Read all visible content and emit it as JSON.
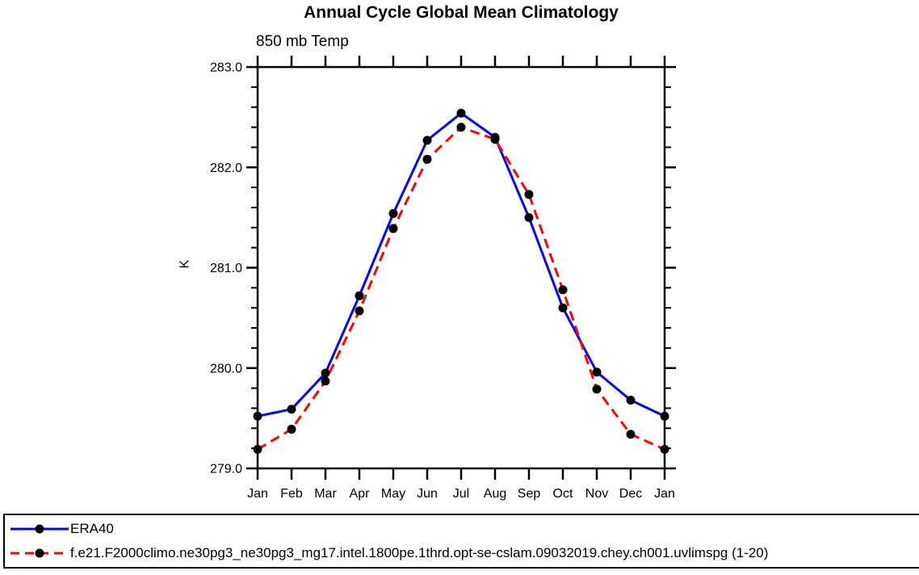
{
  "chart_data": {
    "type": "line",
    "title": "Annual Cycle Global Mean Climatology",
    "subtitle": "850 mb Temp",
    "ylabel": "K",
    "xlabel": "",
    "categories": [
      "Jan",
      "Feb",
      "Mar",
      "Apr",
      "May",
      "Jun",
      "Jul",
      "Aug",
      "Sep",
      "Oct",
      "Nov",
      "Dec",
      "Jan"
    ],
    "ylim": [
      279.0,
      283.0
    ],
    "ytick_major_step": 1.0,
    "ytick_minor_step": 0.2,
    "ytick_labels": [
      "279.0",
      "280.0",
      "281.0",
      "282.0",
      "283.0"
    ],
    "grid": "off",
    "frame": "box-with-outward-ticks",
    "legend_position": "bottom-left-boxed",
    "marker": "filled-black-circle",
    "series": [
      {
        "name": "ERA40",
        "color": "#0000ff",
        "line_style": "solid",
        "values": [
          279.52,
          279.59,
          279.95,
          280.72,
          281.54,
          282.27,
          282.54,
          282.3,
          281.5,
          280.6,
          279.96,
          279.68,
          279.52
        ]
      },
      {
        "name": "f.e21.F2000climo.ne30pg3_ne30pg3_mg17.intel.1800pe.1thrd.opt-se-cslam.09032019.chey.ch001.uvlimspg (1-20)",
        "color": "#ff0000",
        "line_style": "dashed",
        "values": [
          279.19,
          279.39,
          279.87,
          280.57,
          281.39,
          282.08,
          282.4,
          282.28,
          281.73,
          280.78,
          279.79,
          279.34,
          279.19
        ]
      }
    ],
    "colors": {
      "axis": "#000000",
      "text": "#000000",
      "marker": "#000000",
      "background": "#ffffff"
    }
  }
}
